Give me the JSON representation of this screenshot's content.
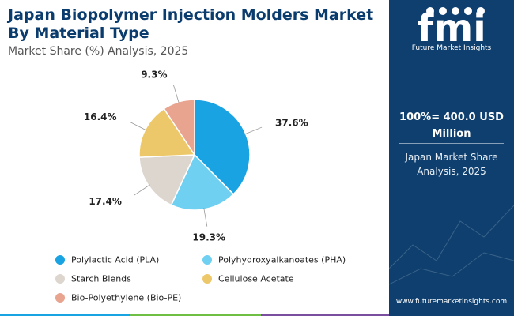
{
  "title_line1": "Japan Biopolymer Injection Molders Market",
  "title_line2": "By Material Type",
  "subtitle": "Market Share (%) Analysis, 2025",
  "chart_data": {
    "type": "pie",
    "title": "Japan Biopolymer Injection Molders Market By Material Type",
    "subtitle": "Market Share (%) Analysis, 2025",
    "legend_position": "bottom",
    "slices": [
      {
        "label": "Polylactic Acid (PLA)",
        "value": 37.6,
        "display": "37.6%",
        "color": "#1aa3e3"
      },
      {
        "label": "Polyhydroxyalkanoates (PHA)",
        "value": 19.3,
        "display": "19.3%",
        "color": "#6fd0f2"
      },
      {
        "label": "Starch Blends",
        "value": 17.4,
        "display": "17.4%",
        "color": "#ddd6cf"
      },
      {
        "label": "Cellulose Acetate",
        "value": 16.4,
        "display": "16.4%",
        "color": "#edc86a"
      },
      {
        "label": "Bio-Polyethylene (Bio-PE)",
        "value": 9.3,
        "display": "9.3%",
        "color": "#e9a48f"
      }
    ]
  },
  "sidebar": {
    "logo_text": "fmi",
    "logo_caption": "Future Market Insights",
    "total_line1": "100%= 400.0 USD",
    "total_line2": "Million",
    "desc_line1": "Japan Market Share",
    "desc_line2": "Analysis, 2025",
    "url": "www.futuremarketinsights.com",
    "background_color": "#0e3f6e"
  },
  "bottom_bar_colors": [
    "#1aa3e3",
    "#6fbf44",
    "#7a4fa0"
  ]
}
